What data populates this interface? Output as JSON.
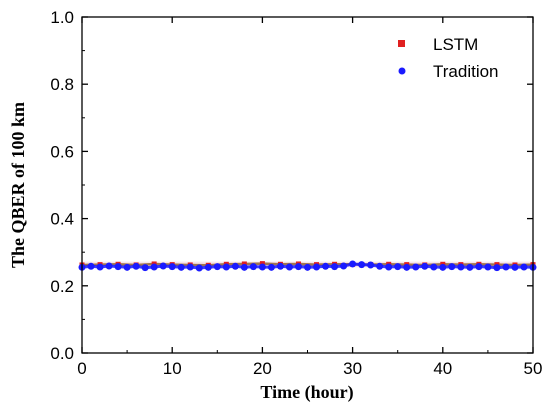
{
  "chart_data": {
    "type": "scatter",
    "xlabel": "Time (hour)",
    "ylabel": "The QBER of 100 km",
    "xlim": [
      0,
      50
    ],
    "ylim": [
      0.0,
      1.0
    ],
    "x_ticks": [
      "0",
      "10",
      "20",
      "30",
      "40",
      "50"
    ],
    "y_ticks": [
      "0.0",
      "0.2",
      "0.4",
      "0.6",
      "0.8",
      "1.0"
    ],
    "grid": false,
    "legend_position": "top-right",
    "series": [
      {
        "name": "LSTM",
        "marker": "square",
        "color": "#e02020",
        "x": [
          0,
          2,
          4,
          6,
          8,
          10,
          12,
          14,
          16,
          18,
          20,
          22,
          24,
          26,
          28,
          30,
          32,
          34,
          36,
          38,
          40,
          42,
          44,
          46,
          48,
          50
        ],
        "y": [
          0.262,
          0.263,
          0.264,
          0.262,
          0.265,
          0.263,
          0.262,
          0.261,
          0.264,
          0.265,
          0.266,
          0.264,
          0.265,
          0.263,
          0.264,
          0.264,
          0.263,
          0.264,
          0.263,
          0.262,
          0.264,
          0.263,
          0.264,
          0.263,
          0.262,
          0.263
        ]
      },
      {
        "name": "Tradition",
        "marker": "circle",
        "color": "#1a1aff",
        "x": [
          0,
          1,
          2,
          3,
          4,
          5,
          6,
          7,
          8,
          9,
          10,
          11,
          12,
          13,
          14,
          15,
          16,
          17,
          18,
          19,
          20,
          21,
          22,
          23,
          24,
          25,
          26,
          27,
          28,
          29,
          30,
          31,
          32,
          33,
          34,
          35,
          36,
          37,
          38,
          39,
          40,
          41,
          42,
          43,
          44,
          45,
          46,
          47,
          48,
          49,
          50
        ],
        "y": [
          0.255,
          0.258,
          0.256,
          0.259,
          0.257,
          0.255,
          0.258,
          0.254,
          0.256,
          0.259,
          0.257,
          0.255,
          0.256,
          0.253,
          0.255,
          0.257,
          0.256,
          0.258,
          0.255,
          0.257,
          0.256,
          0.255,
          0.258,
          0.256,
          0.257,
          0.255,
          0.256,
          0.258,
          0.257,
          0.259,
          0.265,
          0.263,
          0.262,
          0.258,
          0.256,
          0.257,
          0.255,
          0.256,
          0.258,
          0.256,
          0.255,
          0.257,
          0.256,
          0.255,
          0.257,
          0.256,
          0.254,
          0.256,
          0.255,
          0.256,
          0.255
        ]
      }
    ]
  }
}
